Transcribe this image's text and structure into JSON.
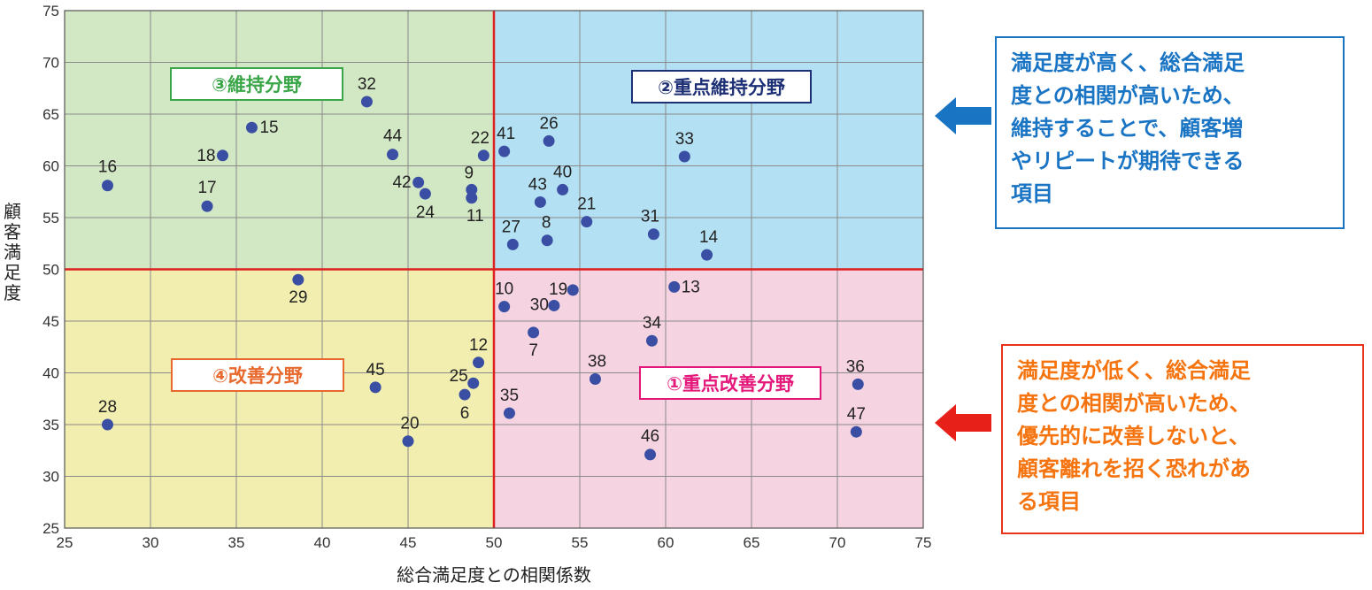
{
  "chart_data": {
    "type": "scatter",
    "xlabel": "総合満足度との相関係数",
    "ylabel": "顧客満足度",
    "xlim": [
      25,
      75
    ],
    "ylim": [
      25,
      75
    ],
    "xticks": [
      25,
      30,
      35,
      40,
      45,
      50,
      55,
      60,
      65,
      70,
      75
    ],
    "yticks": [
      25,
      30,
      35,
      40,
      45,
      50,
      55,
      60,
      65,
      70,
      75
    ],
    "grid": true,
    "dividers": {
      "x": 50,
      "y": 50
    },
    "quadrants": [
      {
        "name": "③維持分野",
        "fill": "#d2e7c4",
        "border": "#3aa647",
        "text": "#3aa647"
      },
      {
        "name": "②重点維持分野",
        "fill": "#b3e0f2",
        "border": "#1d2f75",
        "text": "#1d2f75"
      },
      {
        "name": "④改善分野",
        "fill": "#f2eeb0",
        "border": "#e8692d",
        "text": "#e8692d"
      },
      {
        "name": "①重点改善分野",
        "fill": "#f6d3e0",
        "border": "#e4177a",
        "text": "#e4177a"
      }
    ],
    "points": [
      {
        "label": "16",
        "x": 27.5,
        "y": 58.1
      },
      {
        "label": "17",
        "x": 33.3,
        "y": 56.1
      },
      {
        "label": "18",
        "x": 34.2,
        "y": 61.0
      },
      {
        "label": "15",
        "x": 35.9,
        "y": 63.7
      },
      {
        "label": "32",
        "x": 42.6,
        "y": 66.2
      },
      {
        "label": "44",
        "x": 44.1,
        "y": 61.1
      },
      {
        "label": "42",
        "x": 45.6,
        "y": 58.4
      },
      {
        "label": "24",
        "x": 46.0,
        "y": 57.3
      },
      {
        "label": "9",
        "x": 48.7,
        "y": 57.7
      },
      {
        "label": "11",
        "x": 48.7,
        "y": 56.9
      },
      {
        "label": "22",
        "x": 49.4,
        "y": 61.0
      },
      {
        "label": "41",
        "x": 50.6,
        "y": 61.4
      },
      {
        "label": "26",
        "x": 53.2,
        "y": 62.4
      },
      {
        "label": "43",
        "x": 52.7,
        "y": 56.5
      },
      {
        "label": "40",
        "x": 54.0,
        "y": 57.7
      },
      {
        "label": "27",
        "x": 51.1,
        "y": 52.4
      },
      {
        "label": "8",
        "x": 53.1,
        "y": 52.8
      },
      {
        "label": "21",
        "x": 55.4,
        "y": 54.6
      },
      {
        "label": "31",
        "x": 59.3,
        "y": 53.4
      },
      {
        "label": "33",
        "x": 61.1,
        "y": 60.9
      },
      {
        "label": "14",
        "x": 62.4,
        "y": 51.4
      },
      {
        "label": "29",
        "x": 38.6,
        "y": 49.0
      },
      {
        "label": "10",
        "x": 50.6,
        "y": 46.4
      },
      {
        "label": "19",
        "x": 54.6,
        "y": 48.0
      },
      {
        "label": "30",
        "x": 53.5,
        "y": 46.5
      },
      {
        "label": "13",
        "x": 60.5,
        "y": 48.3
      },
      {
        "label": "7",
        "x": 52.3,
        "y": 43.9
      },
      {
        "label": "34",
        "x": 59.2,
        "y": 43.1
      },
      {
        "label": "12",
        "x": 49.1,
        "y": 41.0
      },
      {
        "label": "45",
        "x": 43.1,
        "y": 38.6
      },
      {
        "label": "25",
        "x": 48.8,
        "y": 39.0
      },
      {
        "label": "6",
        "x": 48.3,
        "y": 37.9
      },
      {
        "label": "38",
        "x": 55.9,
        "y": 39.4
      },
      {
        "label": "36",
        "x": 71.2,
        "y": 38.9
      },
      {
        "label": "35",
        "x": 50.9,
        "y": 36.1
      },
      {
        "label": "28",
        "x": 27.5,
        "y": 35.0
      },
      {
        "label": "20",
        "x": 45.0,
        "y": 33.4
      },
      {
        "label": "47",
        "x": 71.1,
        "y": 34.3
      },
      {
        "label": "46",
        "x": 59.1,
        "y": 32.1
      }
    ],
    "point_color": "#3a4fa3",
    "divider_color": "#dd2020"
  },
  "callouts": {
    "top": {
      "lines": [
        "満足度が高く、総合満足",
        "度との相関が高いため、",
        "維持することで、顧客増",
        "やリピートが期待できる",
        "項目"
      ],
      "color": "#1a74c4"
    },
    "bottom": {
      "lines": [
        "満足度が低く、総合満足",
        "度との相関が高いため、",
        "優先的に改善しないと、",
        "顧客離れを招く恐れがあ",
        "る項目"
      ],
      "color": "#f5740f"
    },
    "arrow_colors": {
      "top": "#1a74c4",
      "bottom": "#e8201a"
    }
  }
}
